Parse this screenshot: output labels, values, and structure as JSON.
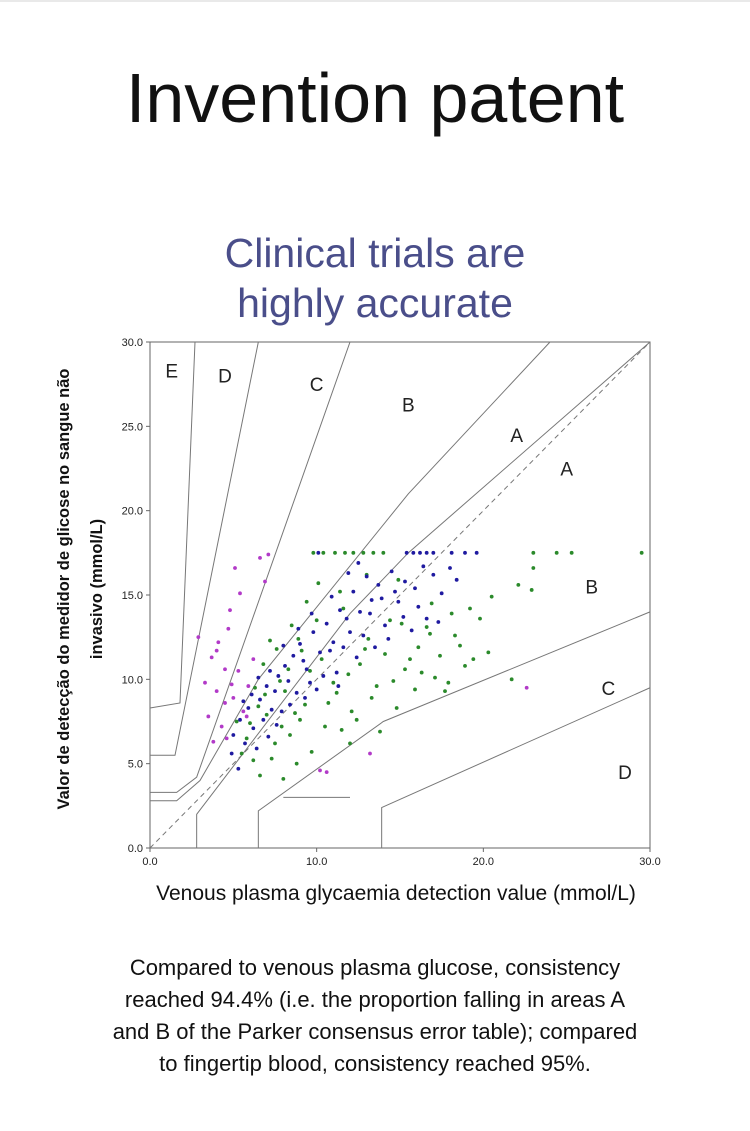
{
  "page": {
    "title": "Invention patent",
    "subtitle_lines": [
      "Clinical trials are",
      "highly accurate"
    ],
    "caption_lines": [
      "Compared to venous plasma glucose, consistency",
      "reached 94.4% (i.e. the proportion falling in areas A",
      "and B of the Parker consensus error table); compared",
      "to fingertip blood, consistency reached 95%."
    ]
  },
  "chart_data": {
    "type": "scatter",
    "title": "",
    "xlabel": "Venous plasma glycaemia detection value (mmol/L)",
    "ylabel_lines": [
      "Valor de detecção do medidor de glicose no sangue não",
      "invasivo (mmol/L)"
    ],
    "xlim": [
      0,
      30
    ],
    "ylim": [
      0,
      30
    ],
    "xticks": [
      "0.0",
      "10.0",
      "20.0",
      "30.0"
    ],
    "yticks": [
      "0.0",
      "5.0",
      "10.0",
      "15.0",
      "20.0",
      "25.0",
      "30.0"
    ],
    "grid": false,
    "identity_line": true,
    "zone_labels": [
      {
        "text": "E",
        "x": 1.3,
        "y": 28.3
      },
      {
        "text": "D",
        "x": 4.5,
        "y": 28.0
      },
      {
        "text": "C",
        "x": 10.0,
        "y": 27.5
      },
      {
        "text": "B",
        "x": 15.5,
        "y": 26.3
      },
      {
        "text": "A",
        "x": 22.0,
        "y": 24.5
      },
      {
        "text": "A",
        "x": 25.0,
        "y": 22.5
      },
      {
        "text": "B",
        "x": 26.5,
        "y": 15.5
      },
      {
        "text": "C",
        "x": 27.5,
        "y": 9.5
      },
      {
        "text": "D",
        "x": 28.5,
        "y": 4.5
      }
    ],
    "zone_boundaries": [
      [
        [
          0,
          8.3
        ],
        [
          1.8,
          8.6
        ],
        [
          2.7,
          30
        ]
      ],
      [
        [
          0,
          5.5
        ],
        [
          1.5,
          5.5
        ],
        [
          6.5,
          30
        ]
      ],
      [
        [
          0,
          3.3
        ],
        [
          1.6,
          3.3
        ],
        [
          2.8,
          4.2
        ],
        [
          12,
          30
        ]
      ],
      [
        [
          0,
          2.8
        ],
        [
          1.6,
          2.8
        ],
        [
          3.0,
          4.0
        ],
        [
          6.5,
          10.0
        ],
        [
          15.5,
          21
        ],
        [
          24,
          30
        ]
      ],
      [
        [
          2.8,
          0
        ],
        [
          2.8,
          2.0
        ],
        [
          12,
          13.9
        ],
        [
          15.5,
          17.5
        ],
        [
          30,
          30
        ]
      ],
      [
        [
          6.5,
          0
        ],
        [
          6.5,
          2.2
        ],
        [
          14,
          7.5
        ],
        [
          30,
          14
        ]
      ],
      [
        [
          13.9,
          0
        ],
        [
          13.9,
          2.4
        ],
        [
          30,
          9.5
        ]
      ],
      [
        [
          8.0,
          3.0
        ],
        [
          12.0,
          3.0
        ]
      ]
    ],
    "series": [
      {
        "color": "#b23ac8",
        "points": [
          [
            2.9,
            12.5
          ],
          [
            4.6,
            6.5
          ],
          [
            5.0,
            8.9
          ],
          [
            4.5,
            10.6
          ],
          [
            4.0,
            11.7
          ],
          [
            4.8,
            14.1
          ],
          [
            5.4,
            15.1
          ],
          [
            6.6,
            17.2
          ],
          [
            7.1,
            17.4
          ],
          [
            4.3,
            7.2
          ],
          [
            4.9,
            9.7
          ],
          [
            5.3,
            10.5
          ],
          [
            3.7,
            11.3
          ],
          [
            5.8,
            7.8
          ],
          [
            4.1,
            12.2
          ],
          [
            4.5,
            8.6
          ],
          [
            10.2,
            4.6
          ],
          [
            10.6,
            4.5
          ],
          [
            13.2,
            5.6
          ],
          [
            22.6,
            9.5
          ],
          [
            3.3,
            9.8
          ],
          [
            6.2,
            11.2
          ],
          [
            3.8,
            6.3
          ],
          [
            5.6,
            8.1
          ],
          [
            4.0,
            9.3
          ],
          [
            5.1,
            16.6
          ],
          [
            6.9,
            15.8
          ],
          [
            4.7,
            13.0
          ],
          [
            3.5,
            7.8
          ],
          [
            5.9,
            9.6
          ]
        ]
      },
      {
        "color": "#2b8a2b",
        "points": [
          [
            5.2,
            7.5
          ],
          [
            5.8,
            6.5
          ],
          [
            6.3,
            9.5
          ],
          [
            6.5,
            8.4
          ],
          [
            6.8,
            10.9
          ],
          [
            7.3,
            5.3
          ],
          [
            7.6,
            11.8
          ],
          [
            8.1,
            9.3
          ],
          [
            8.4,
            6.7
          ],
          [
            8.9,
            12.4
          ],
          [
            9.3,
            8.5
          ],
          [
            9.6,
            10.5
          ],
          [
            10.0,
            13.5
          ],
          [
            10.5,
            7.2
          ],
          [
            11.2,
            9.2
          ],
          [
            11.6,
            14.2
          ],
          [
            12.1,
            8.1
          ],
          [
            12.6,
            10.9
          ],
          [
            13.1,
            12.4
          ],
          [
            13.6,
            9.6
          ],
          [
            14.1,
            11.5
          ],
          [
            14.6,
            9.9
          ],
          [
            15.1,
            13.3
          ],
          [
            15.6,
            11.2
          ],
          [
            16.3,
            10.4
          ],
          [
            16.8,
            12.7
          ],
          [
            17.4,
            11.4
          ],
          [
            17.9,
            9.8
          ],
          [
            18.6,
            12.0
          ],
          [
            19.2,
            14.2
          ],
          [
            19.8,
            13.6
          ],
          [
            20.3,
            11.6
          ],
          [
            21.7,
            10.0
          ],
          [
            22.9,
            15.3
          ],
          [
            9.8,
            17.5
          ],
          [
            10.4,
            17.5
          ],
          [
            11.1,
            17.5
          ],
          [
            11.7,
            17.5
          ],
          [
            12.2,
            17.5
          ],
          [
            12.8,
            17.5
          ],
          [
            13.4,
            17.5
          ],
          [
            14.0,
            17.5
          ],
          [
            23.0,
            17.5
          ],
          [
            24.4,
            17.5
          ],
          [
            25.3,
            17.5
          ],
          [
            29.5,
            17.5
          ],
          [
            23.0,
            16.6
          ],
          [
            22.1,
            15.6
          ],
          [
            6.0,
            7.4
          ],
          [
            6.9,
            9.1
          ],
          [
            7.9,
            7.2
          ],
          [
            8.7,
            8.0
          ],
          [
            9.1,
            11.7
          ],
          [
            10.3,
            11.2
          ],
          [
            11.0,
            9.8
          ],
          [
            11.9,
            10.3
          ],
          [
            12.4,
            7.6
          ],
          [
            13.3,
            8.9
          ],
          [
            14.4,
            13.5
          ],
          [
            14.8,
            8.3
          ],
          [
            15.9,
            9.4
          ],
          [
            16.6,
            13.1
          ],
          [
            17.1,
            10.1
          ],
          [
            18.1,
            13.9
          ],
          [
            18.9,
            10.8
          ],
          [
            20.5,
            14.9
          ],
          [
            7.2,
            12.3
          ],
          [
            8.5,
            13.2
          ],
          [
            9.4,
            14.6
          ],
          [
            10.1,
            15.7
          ],
          [
            11.4,
            15.2
          ],
          [
            6.6,
            4.3
          ],
          [
            8.0,
            4.1
          ],
          [
            9.7,
            5.7
          ],
          [
            12.0,
            6.2
          ],
          [
            13.8,
            6.9
          ],
          [
            5.5,
            5.6
          ],
          [
            7.0,
            7.9
          ],
          [
            7.8,
            9.9
          ],
          [
            8.3,
            10.6
          ],
          [
            9.0,
            7.6
          ],
          [
            10.7,
            8.6
          ],
          [
            15.3,
            10.6
          ],
          [
            17.7,
            9.3
          ],
          [
            19.4,
            11.2
          ],
          [
            6.2,
            5.2
          ],
          [
            7.5,
            6.2
          ],
          [
            8.8,
            5.0
          ],
          [
            11.5,
            7.0
          ],
          [
            12.9,
            11.8
          ],
          [
            16.1,
            11.9
          ],
          [
            18.3,
            12.6
          ],
          [
            16.9,
            14.5
          ],
          [
            14.9,
            15.9
          ],
          [
            13.0,
            16.2
          ]
        ]
      },
      {
        "color": "#1f1aa0",
        "points": [
          [
            5.0,
            6.7
          ],
          [
            5.4,
            7.6
          ],
          [
            5.9,
            8.3
          ],
          [
            6.2,
            7.1
          ],
          [
            6.6,
            8.8
          ],
          [
            7.0,
            9.6
          ],
          [
            7.3,
            8.2
          ],
          [
            7.7,
            10.2
          ],
          [
            8.1,
            10.8
          ],
          [
            8.6,
            11.4
          ],
          [
            9.0,
            12.1
          ],
          [
            9.4,
            10.6
          ],
          [
            9.8,
            12.8
          ],
          [
            10.2,
            11.6
          ],
          [
            10.6,
            13.3
          ],
          [
            11.0,
            12.2
          ],
          [
            11.4,
            14.1
          ],
          [
            11.8,
            13.6
          ],
          [
            12.2,
            15.2
          ],
          [
            12.6,
            14.0
          ],
          [
            13.0,
            16.1
          ],
          [
            13.3,
            14.7
          ],
          [
            13.7,
            15.6
          ],
          [
            14.1,
            13.2
          ],
          [
            14.5,
            16.4
          ],
          [
            14.9,
            14.6
          ],
          [
            15.3,
            15.8
          ],
          [
            15.7,
            12.9
          ],
          [
            16.1,
            14.3
          ],
          [
            16.6,
            13.6
          ],
          [
            17.0,
            16.2
          ],
          [
            17.5,
            15.1
          ],
          [
            18.0,
            16.6
          ],
          [
            10.1,
            17.5
          ],
          [
            15.4,
            17.5
          ],
          [
            15.8,
            17.5
          ],
          [
            16.2,
            17.5
          ],
          [
            16.6,
            17.5
          ],
          [
            17.0,
            17.5
          ],
          [
            18.1,
            17.5
          ],
          [
            18.9,
            17.5
          ],
          [
            19.6,
            17.5
          ],
          [
            5.7,
            6.2
          ],
          [
            6.1,
            9.1
          ],
          [
            6.8,
            7.6
          ],
          [
            7.5,
            9.3
          ],
          [
            7.9,
            8.1
          ],
          [
            8.3,
            9.9
          ],
          [
            8.8,
            9.2
          ],
          [
            9.2,
            11.1
          ],
          [
            9.6,
            9.8
          ],
          [
            10.4,
            10.2
          ],
          [
            10.8,
            11.7
          ],
          [
            11.2,
            10.4
          ],
          [
            11.6,
            11.9
          ],
          [
            12.0,
            12.8
          ],
          [
            12.4,
            11.3
          ],
          [
            12.8,
            12.6
          ],
          [
            13.2,
            13.9
          ],
          [
            13.5,
            11.9
          ],
          [
            13.9,
            14.8
          ],
          [
            14.3,
            12.4
          ],
          [
            14.7,
            15.2
          ],
          [
            15.2,
            13.7
          ],
          [
            15.9,
            15.4
          ],
          [
            16.4,
            16.7
          ],
          [
            17.3,
            13.4
          ],
          [
            18.4,
            15.9
          ],
          [
            4.9,
            5.6
          ],
          [
            5.3,
            4.7
          ],
          [
            6.4,
            5.9
          ],
          [
            7.1,
            6.6
          ],
          [
            7.6,
            7.3
          ],
          [
            8.4,
            8.5
          ],
          [
            9.3,
            8.9
          ],
          [
            10.0,
            9.4
          ],
          [
            11.3,
            9.6
          ],
          [
            9.7,
            13.9
          ],
          [
            10.9,
            14.9
          ],
          [
            11.9,
            16.3
          ],
          [
            12.5,
            16.9
          ],
          [
            5.6,
            8.7
          ],
          [
            6.5,
            10.1
          ],
          [
            7.2,
            10.5
          ],
          [
            8.0,
            12.0
          ],
          [
            8.9,
            13.0
          ]
        ]
      }
    ]
  }
}
